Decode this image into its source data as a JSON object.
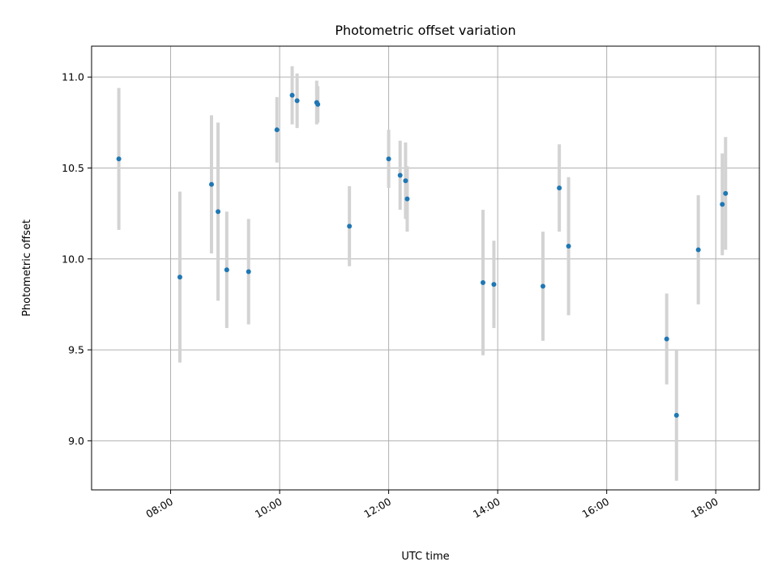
{
  "chart_data": {
    "type": "scatter",
    "title": "Photometric offset variation",
    "xlabel": "UTC time",
    "ylabel": "Photometric offset",
    "x_unit": "hours UTC",
    "xlim": [
      6.55,
      18.8
    ],
    "ylim": [
      8.73,
      11.17
    ],
    "x_ticks": [
      {
        "value": 8,
        "label": "08:00"
      },
      {
        "value": 10,
        "label": "10:00"
      },
      {
        "value": 12,
        "label": "12:00"
      },
      {
        "value": 14,
        "label": "14:00"
      },
      {
        "value": 16,
        "label": "16:00"
      },
      {
        "value": 18,
        "label": "18:00"
      }
    ],
    "y_ticks": [
      {
        "value": 9.0,
        "label": "9.0"
      },
      {
        "value": 9.5,
        "label": "9.5"
      },
      {
        "value": 10.0,
        "label": "10.0"
      },
      {
        "value": 10.5,
        "label": "10.5"
      },
      {
        "value": 11.0,
        "label": "11.0"
      }
    ],
    "grid": true,
    "legend": "none",
    "colors": {
      "points": "#1f77b4",
      "errorbars": "#d3d3d3",
      "grid": "#b0b0b0"
    },
    "points": [
      {
        "x": 7.05,
        "y": 10.55,
        "err": 0.39
      },
      {
        "x": 8.17,
        "y": 9.9,
        "err": 0.47
      },
      {
        "x": 8.75,
        "y": 10.41,
        "err": 0.38
      },
      {
        "x": 8.87,
        "y": 10.26,
        "err": 0.49
      },
      {
        "x": 9.03,
        "y": 9.94,
        "err": 0.32
      },
      {
        "x": 9.43,
        "y": 9.93,
        "err": 0.29
      },
      {
        "x": 9.95,
        "y": 10.71,
        "err": 0.18
      },
      {
        "x": 10.23,
        "y": 10.9,
        "err": 0.16
      },
      {
        "x": 10.32,
        "y": 10.87,
        "err": 0.15
      },
      {
        "x": 10.68,
        "y": 10.86,
        "err": 0.12
      },
      {
        "x": 10.7,
        "y": 10.85,
        "err": 0.1
      },
      {
        "x": 11.28,
        "y": 10.18,
        "err": 0.22
      },
      {
        "x": 12.0,
        "y": 10.55,
        "err": 0.16
      },
      {
        "x": 12.21,
        "y": 10.46,
        "err": 0.19
      },
      {
        "x": 12.31,
        "y": 10.43,
        "err": 0.21
      },
      {
        "x": 12.34,
        "y": 10.33,
        "err": 0.18
      },
      {
        "x": 13.73,
        "y": 9.87,
        "err": 0.4
      },
      {
        "x": 13.93,
        "y": 9.86,
        "err": 0.24
      },
      {
        "x": 14.83,
        "y": 9.85,
        "err": 0.3
      },
      {
        "x": 15.13,
        "y": 10.39,
        "err": 0.24
      },
      {
        "x": 15.3,
        "y": 10.07,
        "err": 0.38
      },
      {
        "x": 17.1,
        "y": 9.56,
        "err": 0.25
      },
      {
        "x": 17.28,
        "y": 9.14,
        "err": 0.36
      },
      {
        "x": 17.68,
        "y": 10.05,
        "err": 0.3
      },
      {
        "x": 18.12,
        "y": 10.3,
        "err": 0.28
      },
      {
        "x": 18.18,
        "y": 10.36,
        "err": 0.31
      }
    ]
  }
}
